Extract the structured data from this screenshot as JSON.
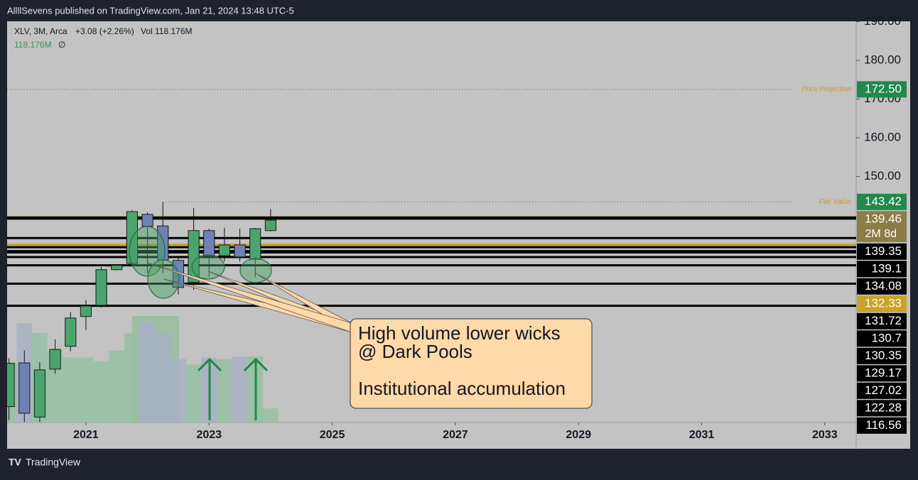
{
  "header": {
    "text": "AllllSevens published on TradingView.com, Jan 21, 2024 13:48 UTC-5"
  },
  "legend": {
    "symbol": "XLV, 3M, Arca",
    "change": "+3.08 (+2.26%)",
    "vol_label": "Vol",
    "vol_value": "118.176M",
    "vol_ma": "118.176M",
    "vol_ma_extra": "∅"
  },
  "chart_data": {
    "type": "candlestick",
    "x": [
      2019.75,
      2020,
      2020.25,
      2020.5,
      2020.75,
      2021,
      2021.25,
      2021.5,
      2021.75,
      2022,
      2022.25,
      2022.5,
      2022.75,
      2023,
      2023.25,
      2023.5,
      2023.75,
      2024
    ],
    "open": [
      90.5,
      101.8,
      87.8,
      100.2,
      106.1,
      113.8,
      116.7,
      125.9,
      127.5,
      140.2,
      137.2,
      128.3,
      122.6,
      136.0,
      129.5,
      132.3,
      128.6,
      136.0
    ],
    "high": [
      103.0,
      105.0,
      102.0,
      107.9,
      114.9,
      118.0,
      126.6,
      127.3,
      141.3,
      140.7,
      143.4,
      129.2,
      141.8,
      136.5,
      136.7,
      136.5,
      136.7,
      141.6
    ],
    "low": [
      87.0,
      86.5,
      86.5,
      99.0,
      104.8,
      110.3,
      116.1,
      125.7,
      127.0,
      125.0,
      125.0,
      119.5,
      120.7,
      124.0,
      128.0,
      128.0,
      124.0,
      135.8
    ],
    "close": [
      101.7,
      88.8,
      100.0,
      105.3,
      113.4,
      116.5,
      125.9,
      127.0,
      140.9,
      137.1,
      128.4,
      121.3,
      136.0,
      129.5,
      132.3,
      129.2,
      136.5,
      138.7
    ],
    "volume": [
      502,
      833,
      750,
      609,
      544,
      544,
      514,
      603,
      750,
      839,
      750,
      532,
      485,
      544,
      532,
      550,
      555,
      118.176
    ],
    "up_color": "#4aa56c",
    "down_color": "#6f82b8",
    "vol_up_color": "#97bfa3",
    "vol_down_color": "#a8b0c6",
    "xlim": [
      2019.72,
      2033.51
    ],
    "xticks": [
      2021,
      2023,
      2025,
      2027,
      2029,
      2031,
      2033
    ],
    "ylim": [
      86.4,
      190.1
    ],
    "yticks": [
      {
        "value": 150,
        "label": "150.00"
      },
      {
        "value": 160,
        "label": "160.00"
      },
      {
        "value": 170,
        "label": "170.00"
      },
      {
        "value": 180,
        "label": "180.00"
      },
      {
        "value": 190,
        "label": "190.00"
      }
    ],
    "projections": [
      {
        "name": "Price Projection",
        "value": {
          "value": 172.5,
          "label": "172.50"
        },
        "color": "#1e8a4c"
      },
      {
        "name": "Fair Value",
        "value": 143.42,
        "color": "#1e8a4c"
      }
    ],
    "countdown": "2M 8d",
    "levels": [
      {
        "value": 139.46,
        "color": "#8a7d45"
      },
      {
        "value": 139.35,
        "color": "#000000"
      },
      {
        "value": 139.1,
        "color": "#000000"
      },
      {
        "value": 134.08,
        "color": "#000000"
      },
      {
        "value": 132.33,
        "color": "#c9a227"
      },
      {
        "value": 131.72,
        "color": "#000000"
      },
      {
        "value": 130.7,
        "color": "#000000"
      },
      {
        "value": 130.35,
        "color": "#000000"
      },
      {
        "value": 129.17,
        "color": "#000000"
      },
      {
        "value": 127.02,
        "color": "#000000"
      },
      {
        "value": 122.28,
        "color": "#000000"
      },
      {
        "value": 116.56,
        "color": "#000000"
      }
    ],
    "annotation": [
      "High volume lower wicks",
      "@ Dark Pools",
      "Institutional accumulation"
    ]
  },
  "footer": {
    "brand": "TradingView"
  }
}
